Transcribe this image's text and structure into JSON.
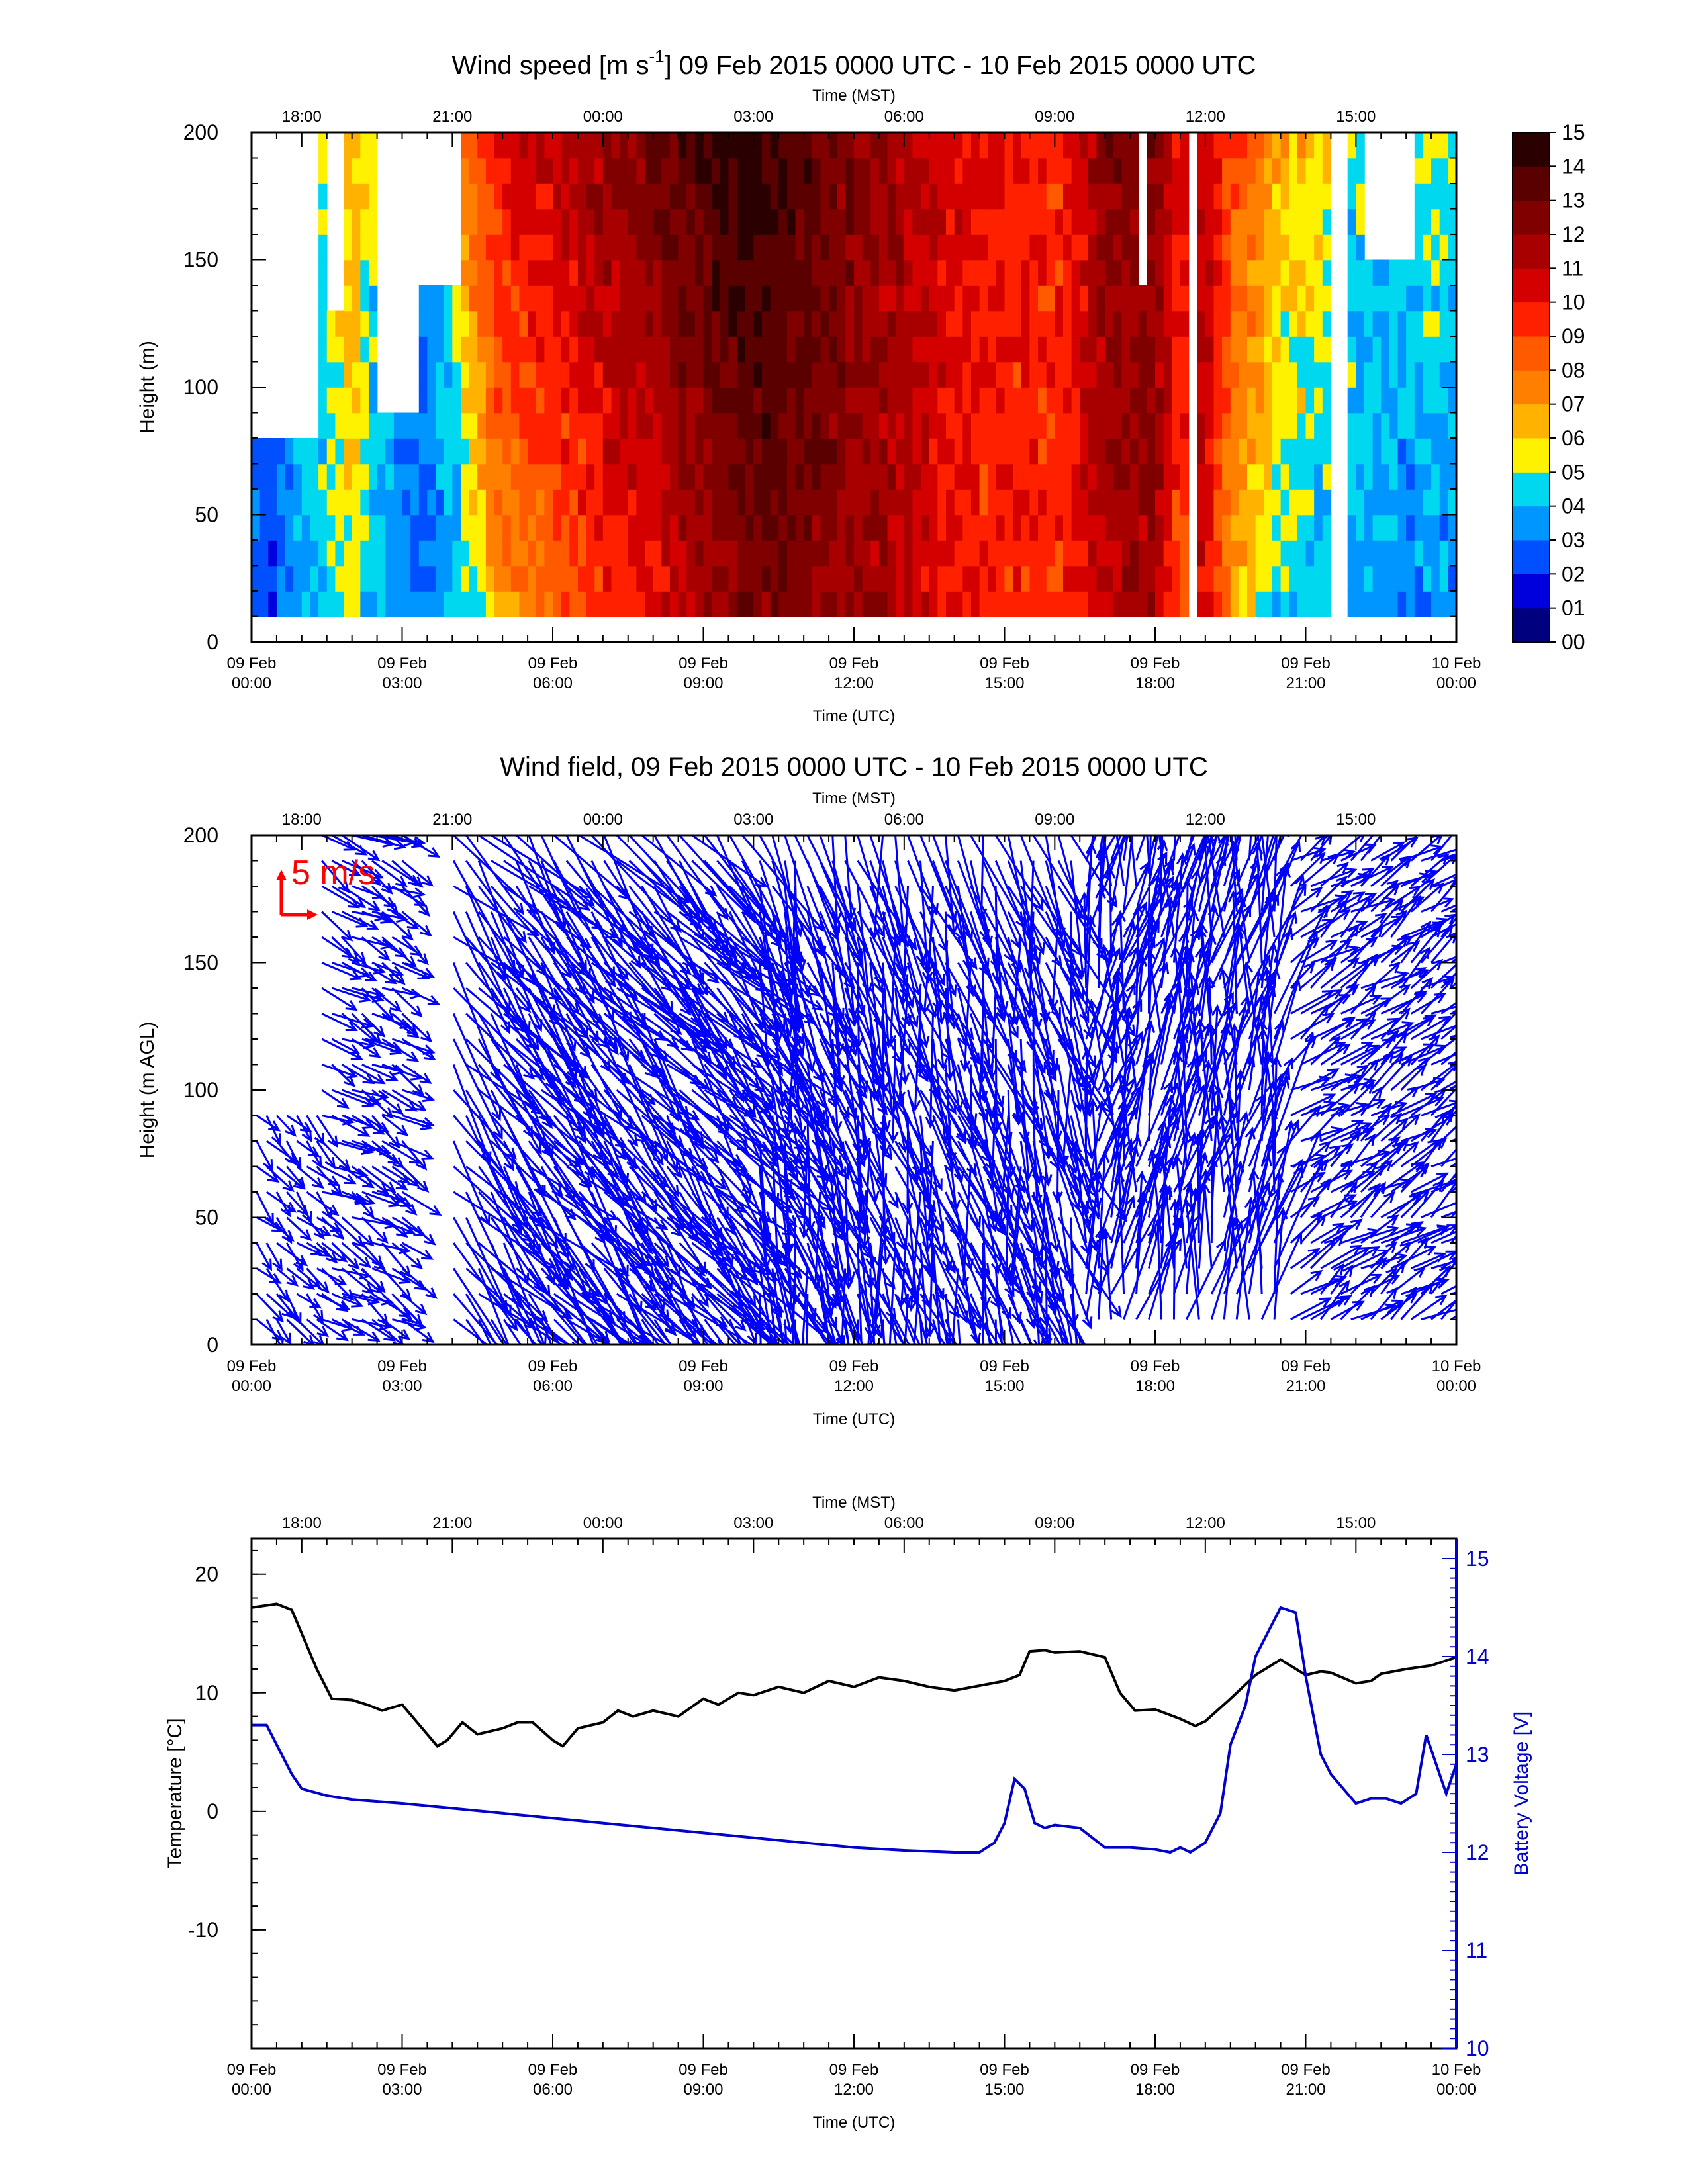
{
  "figure": {
    "background": "#ffffff",
    "axis_color": "#000000"
  },
  "chart_data": [
    {
      "id": "wind-speed",
      "type": "heatmap",
      "title_parts": [
        "Wind speed [m s",
        "-1",
        "] 09 Feb 2015 0000 UTC - 10 Feb 2015 0000 UTC"
      ],
      "xlabel": "Time (UTC)",
      "x2label": "Time (MST)",
      "ylabel": "Height (m)",
      "xlim_hours": [
        0,
        24
      ],
      "ylim": [
        0,
        200
      ],
      "x_ticks": [
        {
          "h": 0,
          "l1": "09 Feb",
          "l2": "00:00"
        },
        {
          "h": 3,
          "l1": "09 Feb",
          "l2": "03:00"
        },
        {
          "h": 6,
          "l1": "09 Feb",
          "l2": "06:00"
        },
        {
          "h": 9,
          "l1": "09 Feb",
          "l2": "09:00"
        },
        {
          "h": 12,
          "l1": "09 Feb",
          "l2": "12:00"
        },
        {
          "h": 15,
          "l1": "09 Feb",
          "l2": "15:00"
        },
        {
          "h": 18,
          "l1": "09 Feb",
          "l2": "18:00"
        },
        {
          "h": 21,
          "l1": "09 Feb",
          "l2": "21:00"
        },
        {
          "h": 24,
          "l1": "10 Feb",
          "l2": "00:00"
        }
      ],
      "x2_ticks": [
        {
          "h": 1,
          "l": "18:00"
        },
        {
          "h": 4,
          "l": "21:00"
        },
        {
          "h": 7,
          "l": "00:00"
        },
        {
          "h": 10,
          "l": "03:00"
        },
        {
          "h": 13,
          "l": "06:00"
        },
        {
          "h": 16,
          "l": "09:00"
        },
        {
          "h": 19,
          "l": "12:00"
        },
        {
          "h": 22,
          "l": "15:00"
        }
      ],
      "y_ticks": [
        0,
        50,
        100,
        150,
        200
      ],
      "colorbar": {
        "labels": [
          "00",
          "01",
          "02",
          "03",
          "04",
          "05",
          "06",
          "07",
          "08",
          "09",
          "10",
          "11",
          "12",
          "13",
          "14",
          "15"
        ],
        "colors": [
          "#00007f",
          "#0000dd",
          "#0050ff",
          "#0096ff",
          "#00d8f0",
          "#fff200",
          "#ffb300",
          "#ff8000",
          "#ff5a00",
          "#ff2000",
          "#d40000",
          "#a80000",
          "#800000",
          "#5a0000",
          "#2a0000"
        ]
      },
      "data_height_range_m": [
        10,
        200
      ],
      "series_hours": [
        0,
        0.5,
        1,
        1.5,
        2,
        2.5,
        3,
        3.5,
        4,
        4.5,
        5,
        5.5,
        6,
        6.5,
        7,
        7.5,
        8,
        8.5,
        9,
        9.5,
        10,
        10.5,
        11,
        11.5,
        12,
        12.5,
        13,
        13.5,
        14,
        14.5,
        15,
        15.5,
        16,
        16.5,
        17,
        17.5,
        18,
        18.5,
        19,
        19.5,
        20,
        20.5,
        21,
        21.5,
        22,
        22.5,
        23,
        23.5,
        24
      ],
      "speed_low_m_s": [
        2.8,
        2.5,
        3.4,
        4.2,
        5.5,
        3.6,
        3,
        3,
        3.5,
        5.2,
        7,
        7.4,
        8,
        8.6,
        9.2,
        9.6,
        10,
        11,
        11.4,
        12,
        12.6,
        12.5,
        12.3,
        12,
        11.8,
        11.5,
        11,
        10.5,
        10,
        9.6,
        9.5,
        9.4,
        9,
        10,
        11,
        11.5,
        11.4,
        9,
        10.5,
        7,
        5.5,
        4.2,
        4.2,
        4.1,
        4,
        3.8,
        3.5,
        3.5,
        3.5
      ],
      "speed_high_m_s": [
        3.2,
        3.1,
        4.3,
        5.5,
        6.8,
        4.8,
        3.6,
        3.5,
        6,
        9,
        10.5,
        10.8,
        11,
        11.5,
        12,
        12.5,
        13,
        13.5,
        14,
        14.5,
        14.8,
        14.2,
        13.8,
        13,
        12.5,
        12,
        11.5,
        11,
        10.5,
        10,
        10,
        10.2,
        9.5,
        10.5,
        12.5,
        12.5,
        12.5,
        10,
        11.5,
        9,
        8,
        6.5,
        6.5,
        5.5,
        4.5,
        4.2,
        4,
        5.5,
        4.5
      ],
      "no_data_gaps": [
        {
          "h0": 0,
          "h1": 1.3,
          "z0": 85,
          "z1": 200
        },
        {
          "h0": 1.5,
          "h1": 1.9,
          "z0": 130,
          "z1": 200
        },
        {
          "h0": 2.5,
          "h1": 3.3,
          "z0": 90,
          "z1": 200
        },
        {
          "h0": 3.3,
          "h1": 4.1,
          "z0": 140,
          "z1": 200
        },
        {
          "h0": 17.6,
          "h1": 17.9,
          "z0": 145,
          "z1": 200
        },
        {
          "h0": 18.6,
          "h1": 18.8,
          "z0": 10,
          "z1": 200
        },
        {
          "h0": 21.5,
          "h1": 21.8,
          "z0": 10,
          "z1": 200
        },
        {
          "h0": 22.2,
          "h1": 23.1,
          "z0": 150,
          "z1": 200
        }
      ]
    },
    {
      "id": "wind-field",
      "type": "vector",
      "title": "Wind field, 09 Feb 2015 0000 UTC - 10 Feb 2015 0000 UTC",
      "xlabel": "Time (UTC)",
      "x2label": "Time (MST)",
      "ylabel": "Height (m AGL)",
      "xlim_hours": [
        0,
        24
      ],
      "ylim": [
        0,
        200
      ],
      "reference_vector_label": "5 m/s",
      "reference_vector_m_s": 5,
      "arrow_color": "#0000ff",
      "reference_color": "#ff0000",
      "heights_m": [
        10,
        20,
        30,
        40,
        50,
        60,
        70,
        80,
        90,
        100,
        110,
        120,
        130,
        140,
        150,
        160,
        170,
        180,
        190,
        200
      ],
      "segments": [
        {
          "h0": 0,
          "h1": 1.3,
          "dir_deg": 315,
          "speed_m_s": 3.5,
          "z_max": 95
        },
        {
          "h0": 1.3,
          "h1": 3.2,
          "dir_deg": 300,
          "speed_m_s": 4,
          "z_max": 200
        },
        {
          "h0": 3.9,
          "h1": 10,
          "dir_deg": 320,
          "speed_m_s": 12,
          "z_max": 200
        },
        {
          "h0": 10,
          "h1": 10.7,
          "dir_deg": 340,
          "speed_m_s": 13,
          "z_max": 200
        },
        {
          "h0": 10.7,
          "h1": 16.5,
          "dir_deg": 345,
          "speed_m_s": 11,
          "z_max": 200
        },
        {
          "h0": 16.5,
          "h1": 20.6,
          "dir_deg": 190,
          "speed_m_s": 11,
          "z_max": 200
        },
        {
          "h0": 20.6,
          "h1": 23.9,
          "dir_deg": 235,
          "speed_m_s": 4.5,
          "z_max": 200
        }
      ]
    },
    {
      "id": "temp-battery",
      "type": "line",
      "x2label": "Time (MST)",
      "xlabel": "Time (UTC)",
      "ylabel": "Temperature [°C]",
      "y2label": "Battery Voltage [V]",
      "xlim_hours": [
        0,
        24
      ],
      "ylim": [
        -20,
        23
      ],
      "y_ticks": [
        -10,
        0,
        10,
        20
      ],
      "y2lim": [
        10,
        15
      ],
      "y2_ticks": [
        10,
        11,
        12,
        13,
        14,
        15
      ],
      "series": [
        {
          "name": "Temperature [°C]",
          "axis": "left",
          "color": "#000000",
          "x_hours": [
            0,
            0.5,
            0.8,
            1,
            1.3,
            1.6,
            2,
            2.3,
            2.6,
            3,
            3.5,
            3.7,
            3.9,
            4.2,
            4.5,
            5,
            5.3,
            5.6,
            6,
            6.2,
            6.5,
            7,
            7.3,
            7.6,
            8,
            8.5,
            9,
            9.3,
            9.7,
            10,
            10.5,
            11,
            11.5,
            12,
            12.5,
            13,
            13.5,
            14,
            14.5,
            15,
            15.3,
            15.5,
            15.8,
            16,
            16.5,
            17,
            17.3,
            17.6,
            18,
            18.5,
            18.8,
            19,
            19.5,
            20,
            20.5,
            21,
            21.3,
            21.5,
            22,
            22.3,
            22.5,
            23,
            23.5,
            24
          ],
          "y_celsius": [
            17.2,
            17.5,
            17,
            15,
            12,
            9.5,
            9.4,
            9,
            8.5,
            9,
            6.5,
            5.5,
            6,
            7.5,
            6.5,
            7,
            7.5,
            7.5,
            6,
            5.5,
            7,
            7.5,
            8.5,
            8,
            8.5,
            8,
            9.5,
            9,
            10,
            9.8,
            10.5,
            10,
            11,
            10.5,
            11.3,
            11,
            10.5,
            10.2,
            10.6,
            11,
            11.5,
            13.5,
            13.6,
            13.4,
            13.5,
            13,
            10,
            8.5,
            8.6,
            7.8,
            7.2,
            7.6,
            9.5,
            11.5,
            12.8,
            11.5,
            11.8,
            11.7,
            10.8,
            11,
            11.6,
            12,
            12.3,
            13
          ]
        },
        {
          "name": "Battery Voltage [V]",
          "axis": "right",
          "color": "#0000cc",
          "x_hours": [
            0,
            0.3,
            0.5,
            0.8,
            1,
            1.5,
            2,
            3,
            4,
            5,
            6,
            7,
            8,
            9,
            10,
            11,
            12,
            13,
            14,
            14.5,
            14.8,
            15,
            15.2,
            15.4,
            15.6,
            15.8,
            16,
            16.5,
            17,
            17.5,
            18,
            18.3,
            18.5,
            18.7,
            19,
            19.3,
            19.5,
            19.8,
            20,
            20.2,
            20.5,
            20.8,
            21,
            21.3,
            21.5,
            22,
            22.3,
            22.6,
            22.9,
            23.2,
            23.4,
            23.6,
            23.8,
            24
          ],
          "y_volts": [
            13.3,
            13.3,
            13.1,
            12.8,
            12.65,
            12.58,
            12.54,
            12.5,
            12.45,
            12.4,
            12.35,
            12.3,
            12.25,
            12.2,
            12.15,
            12.1,
            12.05,
            12.02,
            12.0,
            12.0,
            12.1,
            12.3,
            12.75,
            12.65,
            12.3,
            12.25,
            12.28,
            12.25,
            12.05,
            12.05,
            12.03,
            12.0,
            12.05,
            12.0,
            12.1,
            12.4,
            13.1,
            13.5,
            14.0,
            14.2,
            14.5,
            14.45,
            13.8,
            13.0,
            12.8,
            12.5,
            12.55,
            12.55,
            12.5,
            12.6,
            13.2,
            12.9,
            12.6,
            12.9
          ]
        }
      ]
    }
  ]
}
